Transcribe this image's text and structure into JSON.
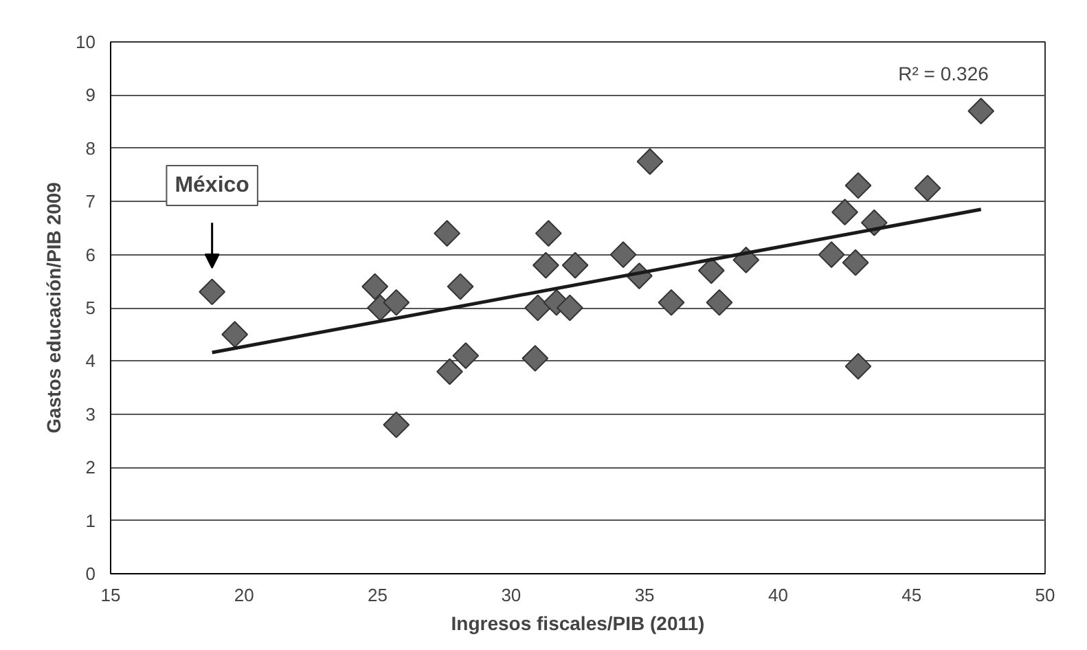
{
  "chart_data": {
    "type": "scatter",
    "xlabel": "Ingresos fiscales/PIB (2011)",
    "ylabel": "Gastos educación/PIB 2009",
    "xlim": [
      15,
      50
    ],
    "xticks": [
      15,
      20,
      25,
      30,
      35,
      40,
      45,
      50
    ],
    "ylim": [
      0,
      10
    ],
    "yticks": [
      0,
      1,
      2,
      3,
      4,
      5,
      6,
      7,
      8,
      9,
      10
    ],
    "grid": "y",
    "marker": "diamond",
    "series": [
      {
        "color": "#666666",
        "x": [
          18.8,
          19.65,
          24.9,
          25.1,
          25.7,
          25.7,
          27.6,
          27.7,
          28.1,
          28.3,
          30.9,
          31.0,
          31.4,
          31.3,
          31.7,
          32.2,
          32.4,
          34.2,
          34.8,
          35.2,
          36.0,
          37.5,
          37.8,
          38.8,
          42.0,
          42.5,
          43.0,
          42.9,
          43.0,
          43.6,
          45.6,
          47.6
        ],
        "values": [
          5.3,
          4.5,
          5.4,
          5.0,
          5.1,
          2.8,
          6.4,
          3.8,
          5.4,
          4.1,
          4.05,
          5.0,
          6.4,
          5.8,
          5.1,
          5.0,
          5.8,
          6.0,
          5.6,
          7.75,
          5.1,
          5.7,
          5.1,
          5.9,
          6.0,
          6.8,
          7.3,
          5.85,
          3.9,
          6.6,
          7.25,
          8.7
        ]
      },
      {
        "type": "line",
        "color": "#1a1a1a",
        "x": [
          18.8,
          47.6
        ],
        "values": [
          4.16,
          6.85
        ],
        "marker": "none"
      }
    ],
    "annotations": [
      "México",
      "R² = 0.326"
    ]
  }
}
